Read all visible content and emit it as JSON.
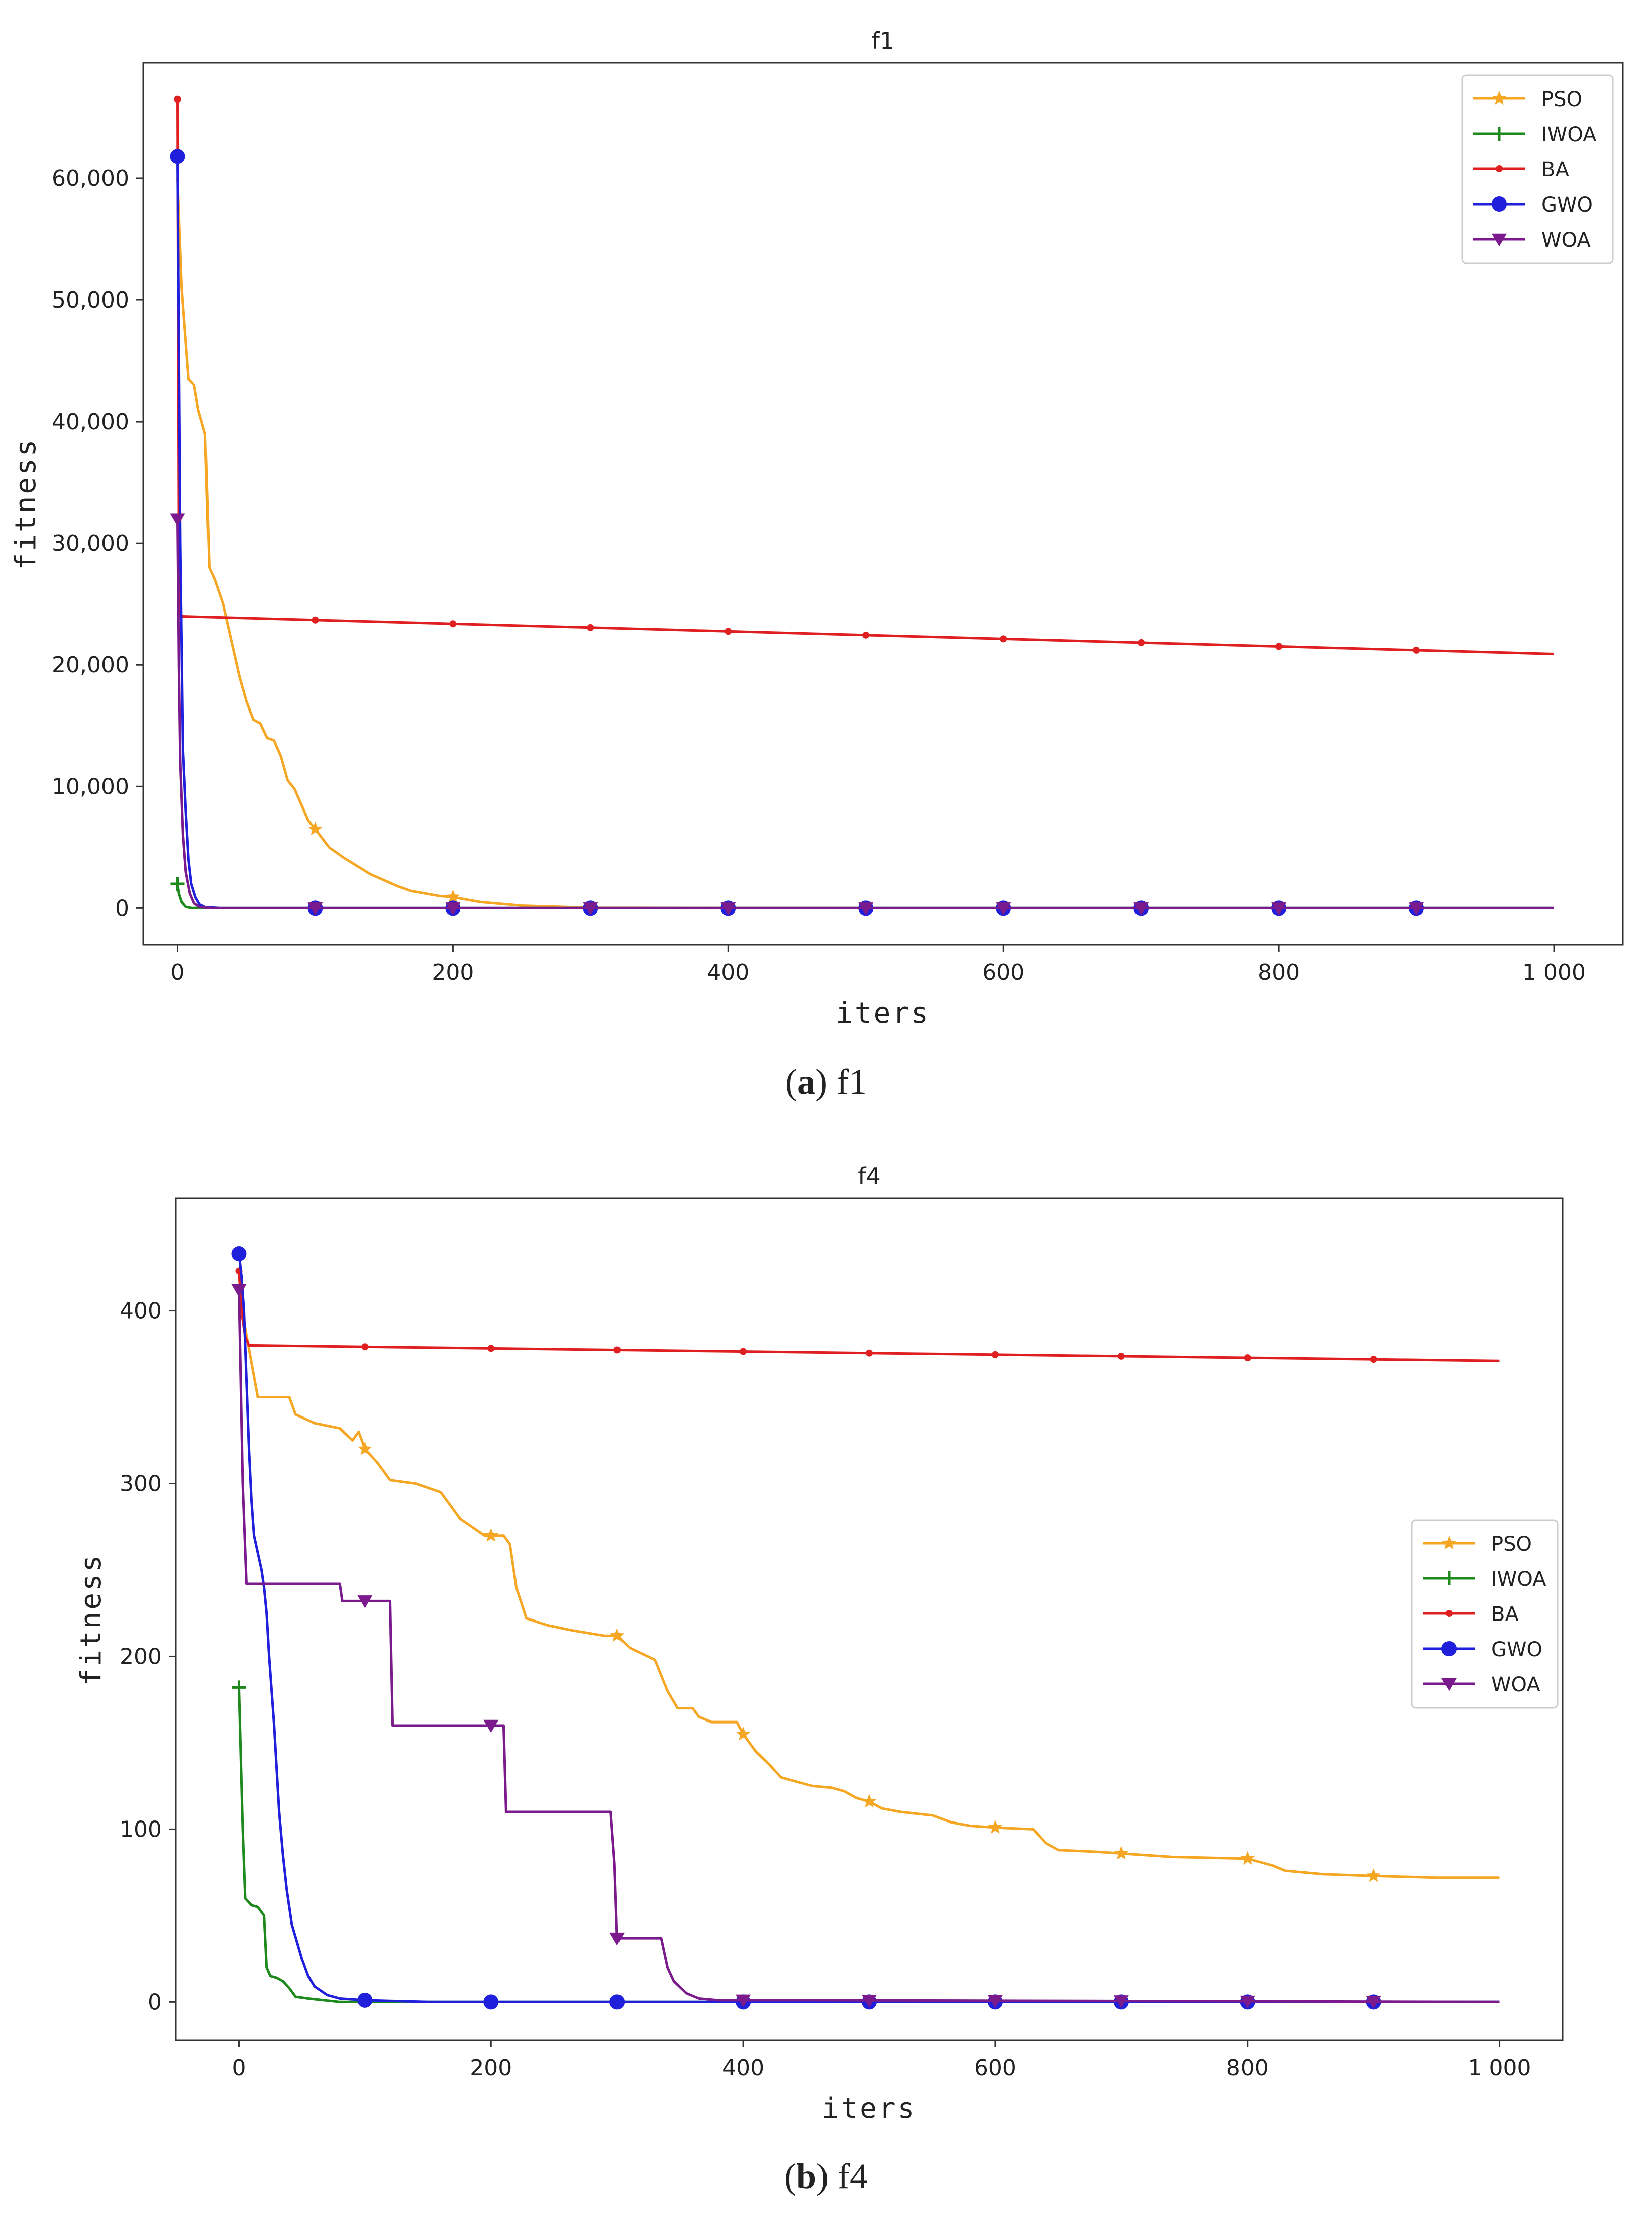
{
  "chart_data": [
    {
      "type": "line",
      "title": "f1",
      "xlabel": "iters",
      "ylabel": "fitness",
      "xlim": [
        -25,
        1050
      ],
      "ylim": [
        -3000,
        69500
      ],
      "xticks": [
        0,
        200,
        400,
        600,
        800,
        1000
      ],
      "xtick_labels": [
        "0",
        "200",
        "400",
        "600",
        "800",
        "1 000"
      ],
      "yticks": [
        0,
        10000,
        20000,
        30000,
        40000,
        50000,
        60000
      ],
      "ytick_labels": [
        "0",
        "10,000",
        "20,000",
        "30,000",
        "40,000",
        "50,000",
        "60,000"
      ],
      "legend_position": "top-right",
      "caption_letter": "a",
      "caption_text": ") f1",
      "series": [
        {
          "name": "PSO",
          "color": "#f5a623",
          "marker": "star",
          "points": [
            [
              0,
              60000
            ],
            [
              3,
              51000
            ],
            [
              8,
              43500
            ],
            [
              12,
              43000
            ],
            [
              15,
              41000
            ],
            [
              20,
              39000
            ],
            [
              23,
              28000
            ],
            [
              27,
              27000
            ],
            [
              33,
              25000
            ],
            [
              38,
              22500
            ],
            [
              45,
              19000
            ],
            [
              50,
              17000
            ],
            [
              55,
              15500
            ],
            [
              60,
              15200
            ],
            [
              65,
              14000
            ],
            [
              70,
              13800
            ],
            [
              75,
              12500
            ],
            [
              80,
              10500
            ],
            [
              85,
              9800
            ],
            [
              90,
              8500
            ],
            [
              95,
              7200
            ],
            [
              100,
              6500
            ],
            [
              110,
              5000
            ],
            [
              120,
              4200
            ],
            [
              130,
              3500
            ],
            [
              140,
              2800
            ],
            [
              150,
              2300
            ],
            [
              160,
              1800
            ],
            [
              170,
              1400
            ],
            [
              180,
              1200
            ],
            [
              190,
              1000
            ],
            [
              200,
              900
            ],
            [
              220,
              500
            ],
            [
              250,
              200
            ],
            [
              300,
              30
            ],
            [
              400,
              5
            ],
            [
              1000,
              0
            ]
          ],
          "marker_x": [
            100,
            200,
            300,
            400,
            500,
            600,
            700,
            800,
            900
          ]
        },
        {
          "name": "IWOA",
          "color": "#1e8a1e",
          "marker": "plus",
          "points": [
            [
              0,
              2000
            ],
            [
              1,
              1200
            ],
            [
              3,
              500
            ],
            [
              6,
              100
            ],
            [
              10,
              10
            ],
            [
              20,
              0
            ],
            [
              1000,
              0
            ]
          ],
          "marker_x": [
            0,
            100,
            200,
            300,
            400,
            500,
            600,
            700,
            800,
            900
          ]
        },
        {
          "name": "BA",
          "color": "#e02020",
          "marker": "dot",
          "points": [
            [
              0,
              66500
            ],
            [
              1,
              30000
            ],
            [
              2,
              24000
            ],
            [
              1000,
              20900
            ]
          ],
          "marker_x": [
            0,
            100,
            200,
            300,
            400,
            500,
            600,
            700,
            800,
            900
          ]
        },
        {
          "name": "GWO",
          "color": "#1f1fdc",
          "marker": "circle",
          "points": [
            [
              0,
              61800
            ],
            [
              2,
              30000
            ],
            [
              4,
              13000
            ],
            [
              6,
              8000
            ],
            [
              8,
              4000
            ],
            [
              10,
              2000
            ],
            [
              13,
              900
            ],
            [
              16,
              300
            ],
            [
              20,
              80
            ],
            [
              30,
              5
            ],
            [
              60,
              0
            ],
            [
              1000,
              0
            ]
          ],
          "marker_x": [
            0,
            100,
            200,
            300,
            400,
            500,
            600,
            700,
            800,
            900
          ]
        },
        {
          "name": "WOA",
          "color": "#7a1a8c",
          "marker": "triangle-down",
          "points": [
            [
              0,
              32000
            ],
            [
              1,
              20000
            ],
            [
              2,
              12000
            ],
            [
              4,
              6000
            ],
            [
              6,
              3000
            ],
            [
              9,
              1200
            ],
            [
              12,
              400
            ],
            [
              16,
              80
            ],
            [
              25,
              0
            ],
            [
              1000,
              0
            ]
          ],
          "marker_x": [
            0,
            100,
            200,
            300,
            400,
            500,
            600,
            700,
            800,
            900
          ]
        }
      ]
    },
    {
      "type": "line",
      "title": "f4",
      "xlabel": "iters",
      "ylabel": "fitness",
      "xlim": [
        -50,
        1050
      ],
      "ylim": [
        -22,
        465
      ],
      "xticks": [
        0,
        200,
        400,
        600,
        800,
        1000
      ],
      "xtick_labels": [
        "0",
        "200",
        "400",
        "600",
        "800",
        "1 000"
      ],
      "yticks": [
        0,
        100,
        200,
        300,
        400
      ],
      "ytick_labels": [
        "0",
        "100",
        "200",
        "300",
        "400"
      ],
      "legend_position": "center-right",
      "caption_letter": "b",
      "caption_text": ") f4",
      "series": [
        {
          "name": "PSO",
          "color": "#f5a623",
          "marker": "star",
          "points": [
            [
              0,
              420
            ],
            [
              5,
              390
            ],
            [
              10,
              370
            ],
            [
              15,
              350
            ],
            [
              40,
              350
            ],
            [
              45,
              340
            ],
            [
              60,
              335
            ],
            [
              80,
              332
            ],
            [
              90,
              325
            ],
            [
              95,
              330
            ],
            [
              100,
              320
            ],
            [
              110,
              312
            ],
            [
              120,
              302
            ],
            [
              140,
              300
            ],
            [
              160,
              295
            ],
            [
              170,
              285
            ],
            [
              175,
              280
            ],
            [
              185,
              275
            ],
            [
              195,
              270
            ],
            [
              210,
              270
            ],
            [
              215,
              265
            ],
            [
              220,
              240
            ],
            [
              228,
              222
            ],
            [
              245,
              218
            ],
            [
              265,
              215
            ],
            [
              290,
              212
            ],
            [
              300,
              212
            ],
            [
              310,
              205
            ],
            [
              330,
              198
            ],
            [
              340,
              180
            ],
            [
              348,
              170
            ],
            [
              360,
              170
            ],
            [
              365,
              165
            ],
            [
              375,
              162
            ],
            [
              395,
              162
            ],
            [
              400,
              155
            ],
            [
              410,
              145
            ],
            [
              420,
              138
            ],
            [
              430,
              130
            ],
            [
              440,
              128
            ],
            [
              455,
              125
            ],
            [
              470,
              124
            ],
            [
              480,
              122
            ],
            [
              490,
              118
            ],
            [
              500,
              116
            ],
            [
              510,
              112
            ],
            [
              525,
              110
            ],
            [
              550,
              108
            ],
            [
              565,
              104
            ],
            [
              580,
              102
            ],
            [
              600,
              101
            ],
            [
              630,
              100
            ],
            [
              640,
              92
            ],
            [
              650,
              88
            ],
            [
              680,
              87
            ],
            [
              700,
              86
            ],
            [
              720,
              85
            ],
            [
              740,
              84
            ],
            [
              800,
              83
            ],
            [
              820,
              79
            ],
            [
              830,
              76
            ],
            [
              860,
              74
            ],
            [
              900,
              73
            ],
            [
              950,
              72
            ],
            [
              1000,
              72
            ]
          ],
          "marker_x": [
            100,
            200,
            300,
            400,
            500,
            600,
            700,
            800,
            900
          ]
        },
        {
          "name": "IWOA",
          "color": "#1e8a1e",
          "marker": "plus",
          "points": [
            [
              0,
              182
            ],
            [
              3,
              100
            ],
            [
              5,
              60
            ],
            [
              10,
              56
            ],
            [
              15,
              55
            ],
            [
              20,
              50
            ],
            [
              22,
              20
            ],
            [
              25,
              15
            ],
            [
              30,
              14
            ],
            [
              35,
              12
            ],
            [
              40,
              8
            ],
            [
              45,
              3
            ],
            [
              55,
              2
            ],
            [
              80,
              0
            ],
            [
              1000,
              0
            ]
          ],
          "marker_x": [
            0
          ]
        },
        {
          "name": "BA",
          "color": "#e02020",
          "marker": "dot",
          "points": [
            [
              0,
              423
            ],
            [
              2,
              400
            ],
            [
              5,
              385
            ],
            [
              8,
              380
            ],
            [
              1000,
              371
            ]
          ],
          "marker_x": [
            0,
            100,
            200,
            300,
            400,
            500,
            600,
            700,
            800,
            900
          ]
        },
        {
          "name": "GWO",
          "color": "#1f1fdc",
          "marker": "circle",
          "points": [
            [
              0,
              433
            ],
            [
              2,
              420
            ],
            [
              4,
              400
            ],
            [
              6,
              360
            ],
            [
              8,
              320
            ],
            [
              10,
              290
            ],
            [
              12,
              270
            ],
            [
              15,
              260
            ],
            [
              18,
              250
            ],
            [
              20,
              240
            ],
            [
              22,
              225
            ],
            [
              24,
              200
            ],
            [
              26,
              180
            ],
            [
              28,
              160
            ],
            [
              30,
              135
            ],
            [
              32,
              110
            ],
            [
              35,
              85
            ],
            [
              38,
              65
            ],
            [
              42,
              45
            ],
            [
              46,
              35
            ],
            [
              50,
              25
            ],
            [
              55,
              15
            ],
            [
              60,
              9
            ],
            [
              70,
              4
            ],
            [
              80,
              2
            ],
            [
              100,
              1
            ],
            [
              150,
              0
            ],
            [
              1000,
              0
            ]
          ],
          "marker_x": [
            0,
            100,
            200,
            300,
            400,
            500,
            600,
            700,
            800,
            900
          ]
        },
        {
          "name": "WOA",
          "color": "#7a1a8c",
          "marker": "triangle-down",
          "points": [
            [
              0,
              412
            ],
            [
              3,
              300
            ],
            [
              6,
              242
            ],
            [
              80,
              242
            ],
            [
              82,
              232
            ],
            [
              120,
              232
            ],
            [
              122,
              160
            ],
            [
              210,
              160
            ],
            [
              212,
              110
            ],
            [
              295,
              110
            ],
            [
              298,
              80
            ],
            [
              300,
              37
            ],
            [
              335,
              37
            ],
            [
              340,
              20
            ],
            [
              345,
              12
            ],
            [
              355,
              5
            ],
            [
              365,
              2
            ],
            [
              380,
              1
            ],
            [
              450,
              1
            ],
            [
              1000,
              0
            ]
          ],
          "marker_x": [
            0,
            100,
            200,
            300,
            400,
            500,
            600,
            700,
            800,
            900
          ]
        }
      ]
    }
  ]
}
